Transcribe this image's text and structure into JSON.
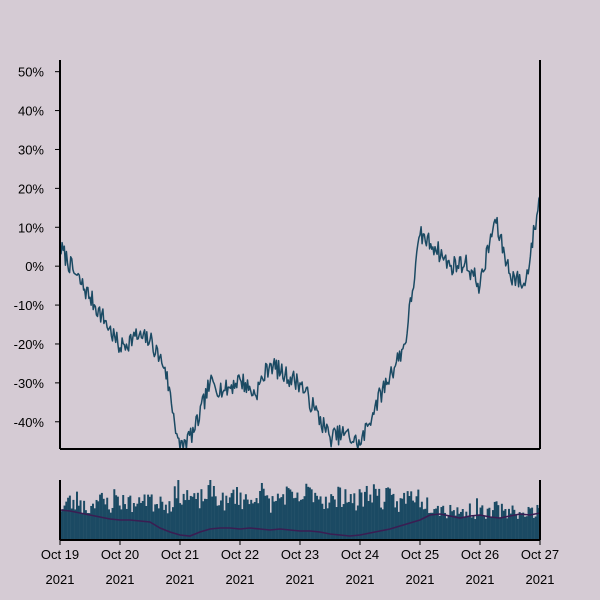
{
  "chart_data": [
    {
      "type": "line",
      "title": "",
      "xlabel": "",
      "ylabel": "",
      "ylim": [
        -47,
        53
      ],
      "y_tick_labels": [
        "50%",
        "40%",
        "30%",
        "20%",
        "10%",
        "0%",
        "-10%",
        "-20%",
        "-30%",
        "-40%"
      ],
      "y_ticks": [
        50,
        40,
        30,
        20,
        10,
        0,
        -10,
        -20,
        -30,
        -40
      ],
      "x_tick_labels": [
        [
          "Oct 19",
          "2021"
        ],
        [
          "Oct 20",
          "2021"
        ],
        [
          "Oct 21",
          "2021"
        ],
        [
          "Oct 22",
          "2021"
        ],
        [
          "Oct 23",
          "2021"
        ],
        [
          "Oct 24",
          "2021"
        ],
        [
          "Oct 25",
          "2021"
        ],
        [
          "Oct 26",
          "2021"
        ],
        [
          "Oct 27",
          "2021"
        ]
      ],
      "x_dates": [
        "2021-10-19",
        "2021-10-20",
        "2021-10-21",
        "2021-10-22",
        "2021-10-23",
        "2021-10-24",
        "2021-10-25",
        "2021-10-26",
        "2021-10-27"
      ],
      "grid": false,
      "series": [
        {
          "color": "#1b4a63",
          "x": [
            "2021-10-19 00:00",
            "2021-10-19 06:00",
            "2021-10-19 12:00",
            "2021-10-19 18:00",
            "2021-10-20 00:00",
            "2021-10-20 06:00",
            "2021-10-20 12:00",
            "2021-10-20 18:00",
            "2021-10-21 00:00",
            "2021-10-21 06:00",
            "2021-10-21 12:00",
            "2021-10-21 18:00",
            "2021-10-22 00:00",
            "2021-10-22 06:00",
            "2021-10-22 12:00",
            "2021-10-22 18:00",
            "2021-10-23 00:00",
            "2021-10-23 06:00",
            "2021-10-23 12:00",
            "2021-10-23 18:00",
            "2021-10-24 00:00",
            "2021-10-24 06:00",
            "2021-10-24 12:00",
            "2021-10-24 18:00",
            "2021-10-25 00:00",
            "2021-10-25 06:00",
            "2021-10-25 12:00",
            "2021-10-25 18:00",
            "2021-10-26 00:00",
            "2021-10-26 06:00",
            "2021-10-26 12:00",
            "2021-10-26 18:00",
            "2021-10-27 00:00"
          ],
          "values": [
            5,
            -2,
            -8,
            -14,
            -21,
            -18,
            -19,
            -26,
            -47,
            -42,
            -30,
            -32,
            -29,
            -33,
            -25,
            -28,
            -30,
            -37,
            -44,
            -43,
            -46,
            -36,
            -28,
            -20,
            8,
            5,
            0,
            1,
            -5,
            12,
            -2,
            -5,
            18
          ]
        }
      ]
    },
    {
      "type": "bar",
      "title": "",
      "xlabel": "",
      "ylabel": "",
      "grid": false,
      "series": [
        {
          "color": "#1b4a63",
          "values": [
            35,
            40,
            38,
            42,
            36,
            33,
            44,
            41,
            39,
            37,
            45,
            40,
            42,
            38,
            36,
            48,
            44,
            39,
            43,
            41,
            37,
            46,
            50,
            47,
            44,
            40,
            43,
            48,
            52,
            45,
            41,
            38,
            49,
            46,
            43,
            40,
            47,
            51,
            44,
            39,
            42,
            46,
            48,
            43,
            41,
            45,
            49,
            52,
            47,
            42,
            44,
            40,
            46,
            50,
            43,
            39,
            45,
            48,
            53,
            47,
            42,
            44,
            41,
            38,
            43,
            46,
            49,
            45,
            40,
            37,
            39,
            33,
            30,
            34,
            31,
            28,
            32,
            29,
            35,
            30,
            27,
            33,
            31,
            28,
            34,
            30,
            26,
            32,
            29,
            31
          ]
        },
        {
          "name": "",
          "color": "#3a1d52",
          "values": [
            30,
            29,
            27,
            25,
            23,
            21,
            20,
            20,
            19,
            18,
            12,
            8,
            5,
            4,
            8,
            11,
            12,
            12,
            11,
            12,
            11,
            10,
            11,
            10,
            9,
            9,
            8,
            6,
            5,
            4,
            5,
            7,
            9,
            11,
            14,
            17,
            20,
            25,
            26,
            24,
            22,
            24,
            25,
            23,
            22,
            24,
            26,
            25,
            27
          ]
        }
      ]
    }
  ]
}
